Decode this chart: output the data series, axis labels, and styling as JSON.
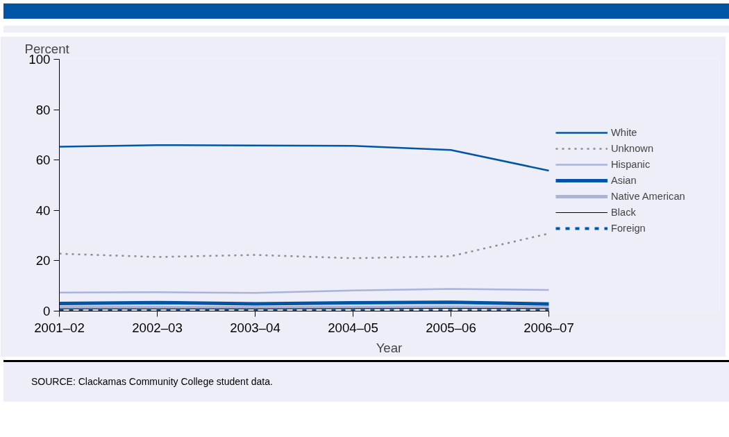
{
  "chart_data": {
    "type": "line",
    "xlabel": "Year",
    "ylabel": "Percent",
    "categories": [
      "2001–02",
      "2002–03",
      "2003–04",
      "2004–05",
      "2005–06",
      "2006–07"
    ],
    "ylim": [
      0,
      100
    ],
    "yticks": [
      0,
      20,
      40,
      60,
      80,
      100
    ],
    "grid": false,
    "legend": "right",
    "series": [
      {
        "name": "White",
        "color": "#0055a5",
        "line_style": "solid",
        "values": [
          65.3,
          65.9,
          65.8,
          65.6,
          64.0,
          55.8
        ]
      },
      {
        "name": "Unknown",
        "color": "#8c8c8c",
        "line_style": "dotted",
        "values": [
          22.8,
          21.5,
          22.3,
          21.0,
          21.8,
          30.8
        ]
      },
      {
        "name": "Hispanic",
        "color": "#a9b4dc",
        "line_style": "solid",
        "values": [
          7.4,
          7.5,
          7.2,
          8.2,
          8.8,
          8.4
        ]
      },
      {
        "name": "Asian",
        "color": "#0055a5",
        "line_style": "solid",
        "values": [
          3.0,
          3.4,
          2.9,
          3.3,
          3.5,
          2.8
        ]
      },
      {
        "name": "Native American",
        "color": "#a9b4dc",
        "line_style": "solid",
        "values": [
          1.5,
          1.5,
          1.4,
          1.5,
          1.6,
          1.4
        ]
      },
      {
        "name": "Black",
        "color": "#000000",
        "line_style": "solid",
        "values": [
          0.9,
          0.9,
          0.9,
          1.0,
          1.1,
          1.0
        ]
      },
      {
        "name": "Foreign",
        "color": "#0055a5",
        "line_style": "dashed",
        "values": [
          0.3,
          0.3,
          0.3,
          0.3,
          0.3,
          0.3
        ]
      }
    ],
    "annotations": [
      "SOURCE: Clackamas Community College student data."
    ]
  }
}
